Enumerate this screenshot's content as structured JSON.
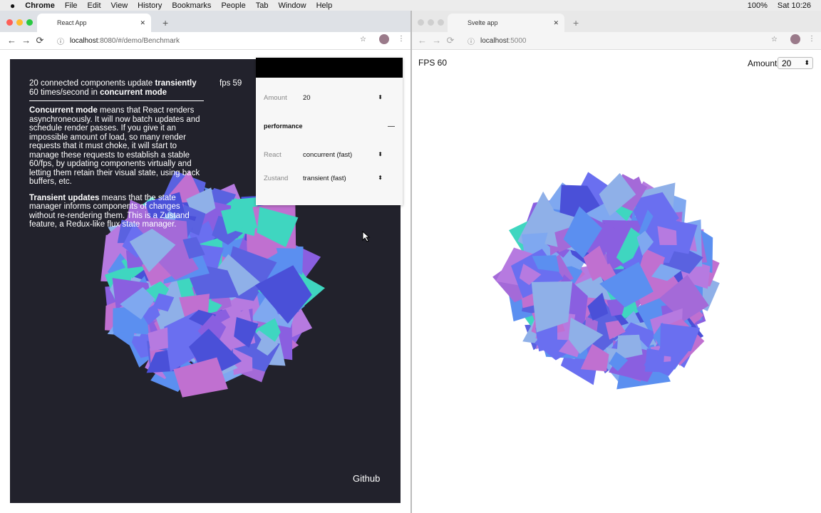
{
  "menubar": {
    "app_name": "Chrome",
    "menus": [
      "File",
      "Edit",
      "View",
      "History",
      "Bookmarks",
      "People",
      "Tab",
      "Window",
      "Help"
    ],
    "battery": "100%",
    "clock": "Sat 10:26"
  },
  "react_window": {
    "tab": "React App",
    "url": {
      "host": "localhost",
      "path": ":8080/#/demo/Benchmark"
    },
    "intro": [
      {
        "text": "20 connected components update ",
        "bold": false
      },
      {
        "text": "transiently",
        "bold": true
      },
      {
        "text": " 60 times/second in ",
        "bold": false
      },
      {
        "text": "concurrent mode",
        "bold": true
      }
    ],
    "fps": "fps 59",
    "paragraphs": [
      [
        {
          "text": "Concurrent mode",
          "bold": true
        },
        {
          "text": " means that React renders asynchroneously. It will now batch updates and schedule render passes. If you give it an impossible amount of load, so many render requests that it must choke, it will start to manage these requests to establish a stable 60/fps, by updating components virtually and letting them retain their visual state, using back buffers, etc.",
          "bold": false
        }
      ],
      [
        {
          "text": "Transient updates",
          "bold": true
        },
        {
          "text": " means that the state manager informs components of changes without re-rendering them. This is a Zustand feature, a Redux-like flux state manager.",
          "bold": false
        }
      ]
    ],
    "panel": {
      "amount_label": "Amount",
      "amount_value": "20",
      "section": "performance",
      "collapse": "—",
      "rows": [
        {
          "label": "React",
          "value": "concurrent (fast)"
        },
        {
          "label": "Zustand",
          "value": "transient (fast)"
        }
      ]
    },
    "github": "Github"
  },
  "svelte_window": {
    "tab": "Svelte app",
    "url": {
      "host": "localhost",
      "path": ":5000"
    },
    "fps": "FPS 60",
    "amount_label": "Amount",
    "amount_value": "20"
  }
}
